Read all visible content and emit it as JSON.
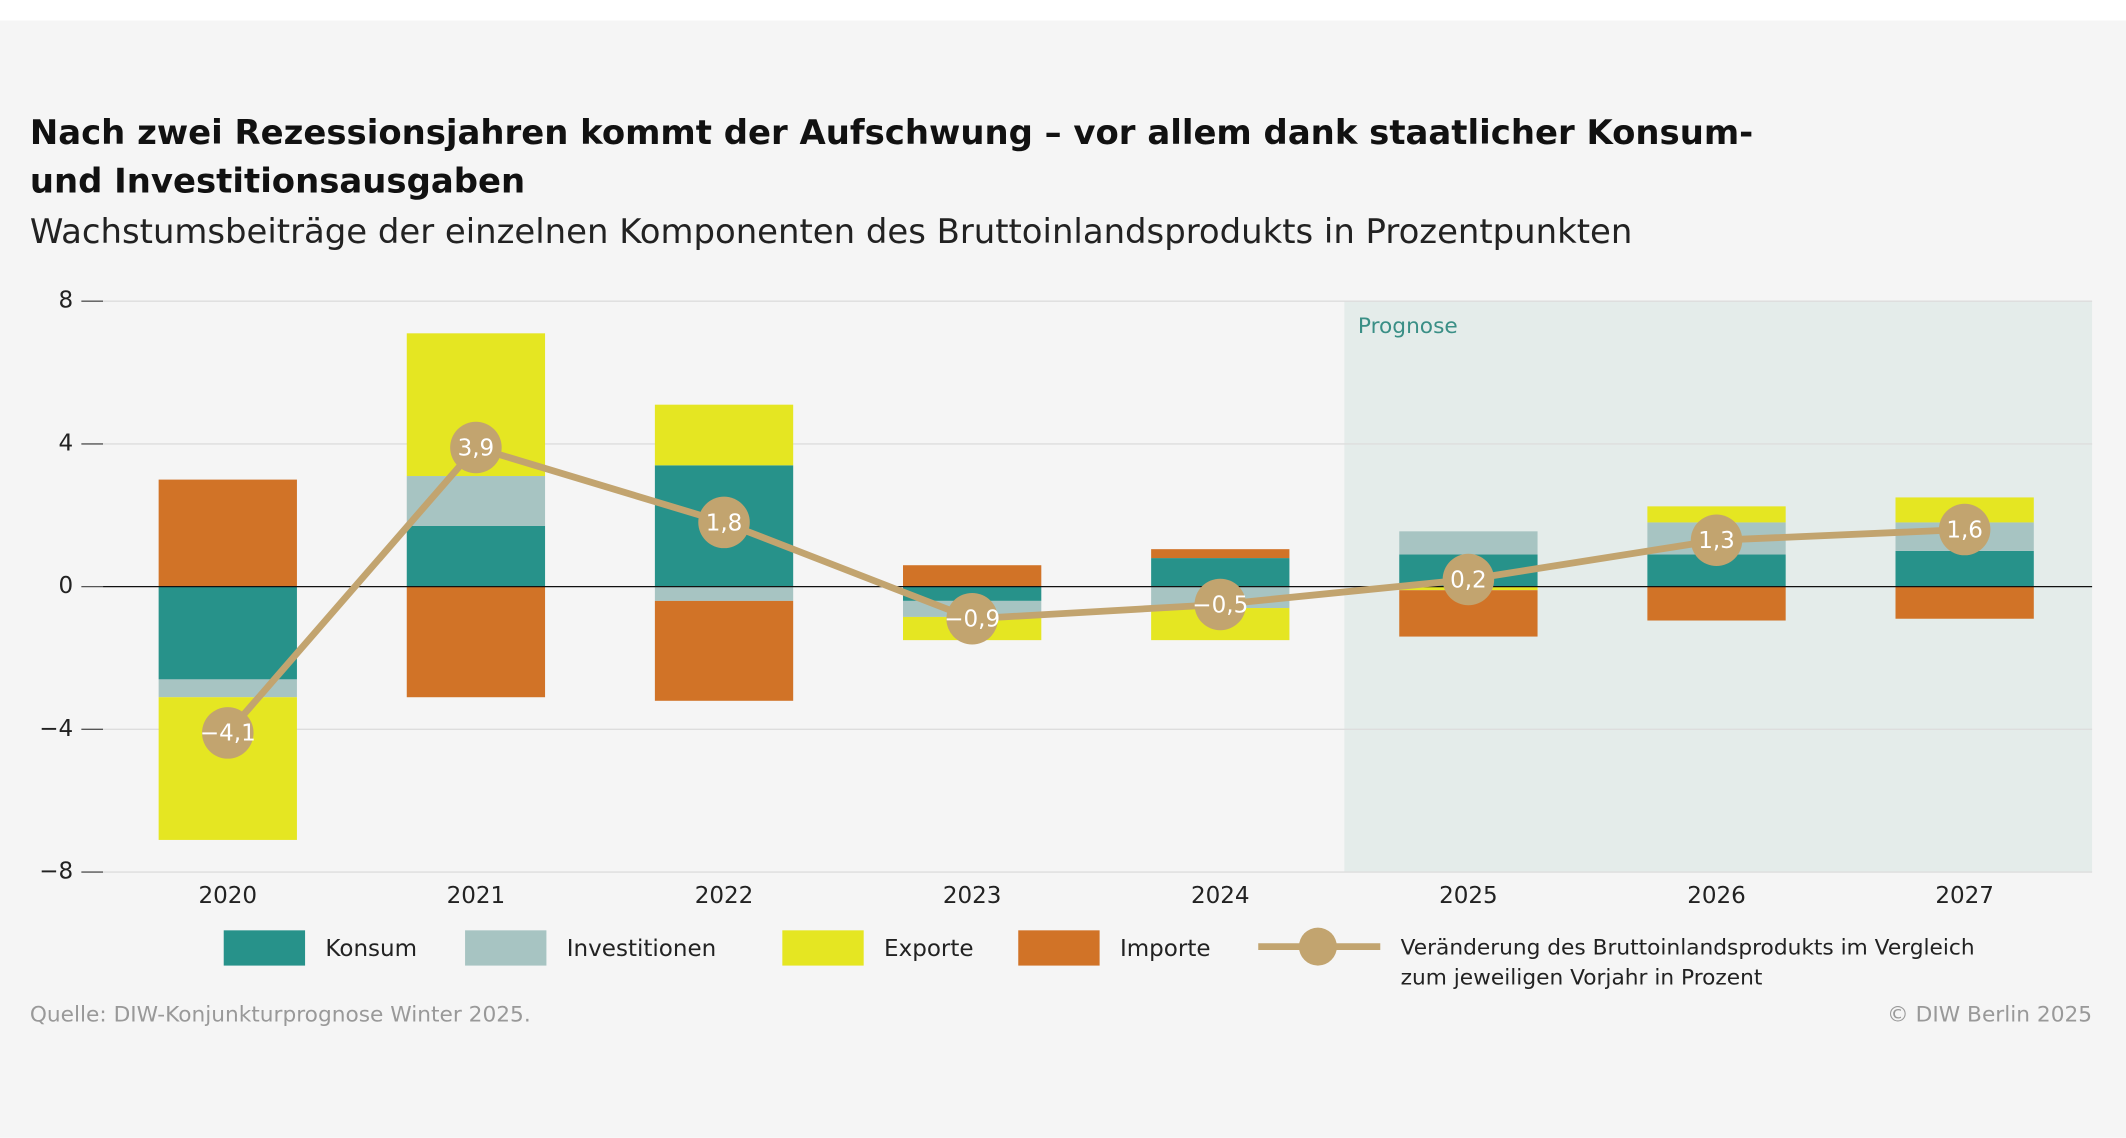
{
  "chart_data": {
    "type": "bar",
    "stacked": true,
    "title": "Nach zwei Rezessionsjahren kommt der Aufschwung – vor allem dank staatlicher Konsum- und Investitionsausgaben",
    "subtitle": "Wachstumsbeiträge der einzelnen Komponenten des Bruttoinlandsprodukts in Prozentpunkten",
    "categories": [
      "2020",
      "2021",
      "2022",
      "2023",
      "2024",
      "2025",
      "2026",
      "2027"
    ],
    "forecast_label": "Prognose",
    "forecast_start": "2025",
    "ylim": [
      -8,
      8
    ],
    "yticks": [
      {
        "value": -8,
        "label": "−8"
      },
      {
        "value": -4,
        "label": "−4"
      },
      0,
      4,
      8
    ],
    "grid": true,
    "series": [
      {
        "name": "Konsum",
        "color": "#27928a",
        "values": [
          -2.6,
          1.7,
          3.4,
          -0.4,
          0.8,
          0.9,
          0.9,
          1.0
        ]
      },
      {
        "name": "Investitionen",
        "color": "#a7c4c2",
        "values": [
          -0.5,
          1.4,
          -0.4,
          -0.45,
          -0.6,
          0.65,
          0.9,
          0.8
        ]
      },
      {
        "name": "Exporte",
        "color": "#e5e622",
        "values": [
          -4.0,
          4.0,
          1.7,
          -0.65,
          -0.9,
          -0.1,
          0.45,
          0.7
        ]
      },
      {
        "name": "Importe",
        "color": "#d17327",
        "values": [
          3.0,
          -3.1,
          -2.8,
          0.6,
          0.25,
          -1.3,
          -0.95,
          -0.9
        ]
      },
      {
        "name": "Veränderung des Bruttoinlandsprodukts im Vergleich zum jeweiligen Vorjahr in Prozent",
        "type": "line",
        "color": "#c2a46f",
        "values": [
          -4.1,
          3.9,
          1.8,
          -0.9,
          -0.5,
          0.2,
          1.3,
          1.6
        ],
        "value_labels": [
          "−4,1",
          "3,9",
          "1,8",
          "−0,9",
          "−0,5",
          "0,2",
          "1,3",
          "1,6"
        ]
      }
    ],
    "source": "Quelle: DIW-Konjunkturprognose Winter 2025.",
    "copyright": "© DIW Berlin 2025"
  }
}
